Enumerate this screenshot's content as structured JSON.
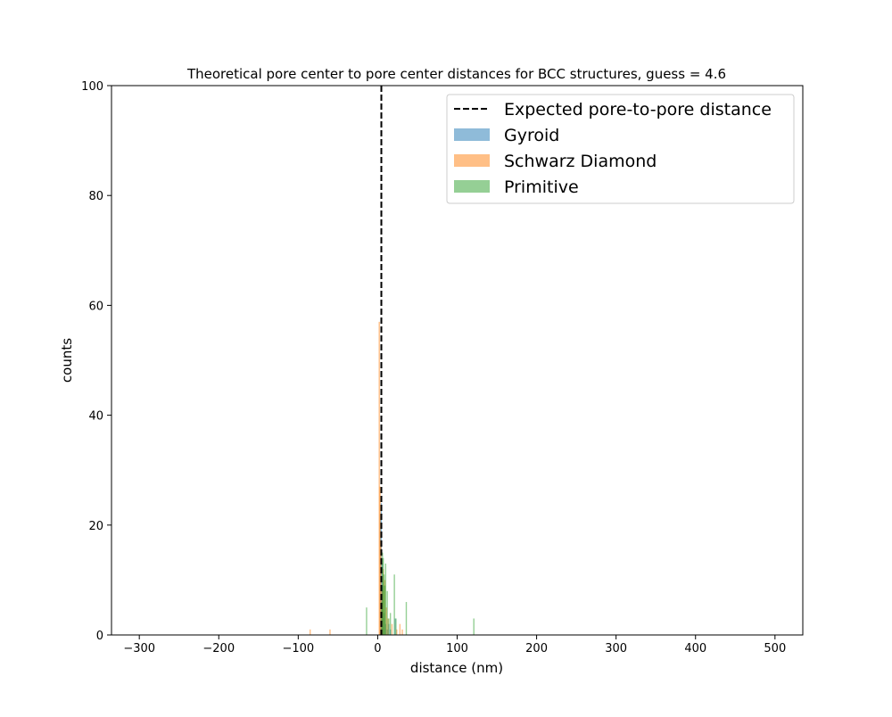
{
  "chart_data": {
    "type": "bar",
    "title": "Theoretical pore center to pore center distances for BCC structures, guess = 4.6",
    "xlabel": "distance (nm)",
    "ylabel": "counts",
    "xlim": [
      -335,
      535
    ],
    "ylim": [
      0,
      100
    ],
    "xticks": [
      -300,
      -200,
      -100,
      0,
      100,
      200,
      300,
      400,
      500
    ],
    "yticks": [
      0,
      20,
      40,
      60,
      80,
      100
    ],
    "xtick_labels": [
      "−300",
      "−200",
      "−100",
      "0",
      "100",
      "200",
      "300",
      "400",
      "500"
    ],
    "ytick_labels": [
      "0",
      "20",
      "40",
      "60",
      "80",
      "100"
    ],
    "grid": false,
    "legend_position": "top-right",
    "expected_line": {
      "label": "Expected pore-to-pore distance",
      "x": 4.6,
      "color": "#000000",
      "style": "dashed"
    },
    "series": [
      {
        "name": "Gyroid",
        "color": "#1f77b4",
        "bars": [
          [
            3.5,
            22
          ],
          [
            4.5,
            24
          ],
          [
            5.5,
            13
          ],
          [
            6.5,
            9
          ],
          [
            8,
            4
          ],
          [
            10,
            2
          ],
          [
            12,
            1
          ],
          [
            14,
            2
          ],
          [
            16,
            1
          ],
          [
            22,
            3
          ]
        ]
      },
      {
        "name": "Schwarz Diamond",
        "color": "#ff7f0e",
        "bars": [
          [
            -85,
            1
          ],
          [
            -60,
            1
          ],
          [
            2,
            57
          ],
          [
            3,
            27
          ],
          [
            4,
            17
          ],
          [
            5.5,
            8
          ],
          [
            7,
            12
          ],
          [
            9,
            10
          ],
          [
            11,
            5
          ],
          [
            13,
            3
          ],
          [
            18,
            2
          ],
          [
            24,
            1
          ],
          [
            28,
            2
          ],
          [
            31,
            1
          ]
        ]
      },
      {
        "name": "Primitive",
        "color": "#2ca02c",
        "bars": [
          [
            -14,
            5
          ],
          [
            5,
            6
          ],
          [
            6,
            15
          ],
          [
            7,
            14
          ],
          [
            8,
            11
          ],
          [
            9,
            9
          ],
          [
            10,
            13
          ],
          [
            12,
            8
          ],
          [
            14,
            3
          ],
          [
            16,
            4
          ],
          [
            21,
            11
          ],
          [
            23,
            3
          ],
          [
            36,
            6
          ],
          [
            121,
            3
          ]
        ]
      }
    ]
  }
}
